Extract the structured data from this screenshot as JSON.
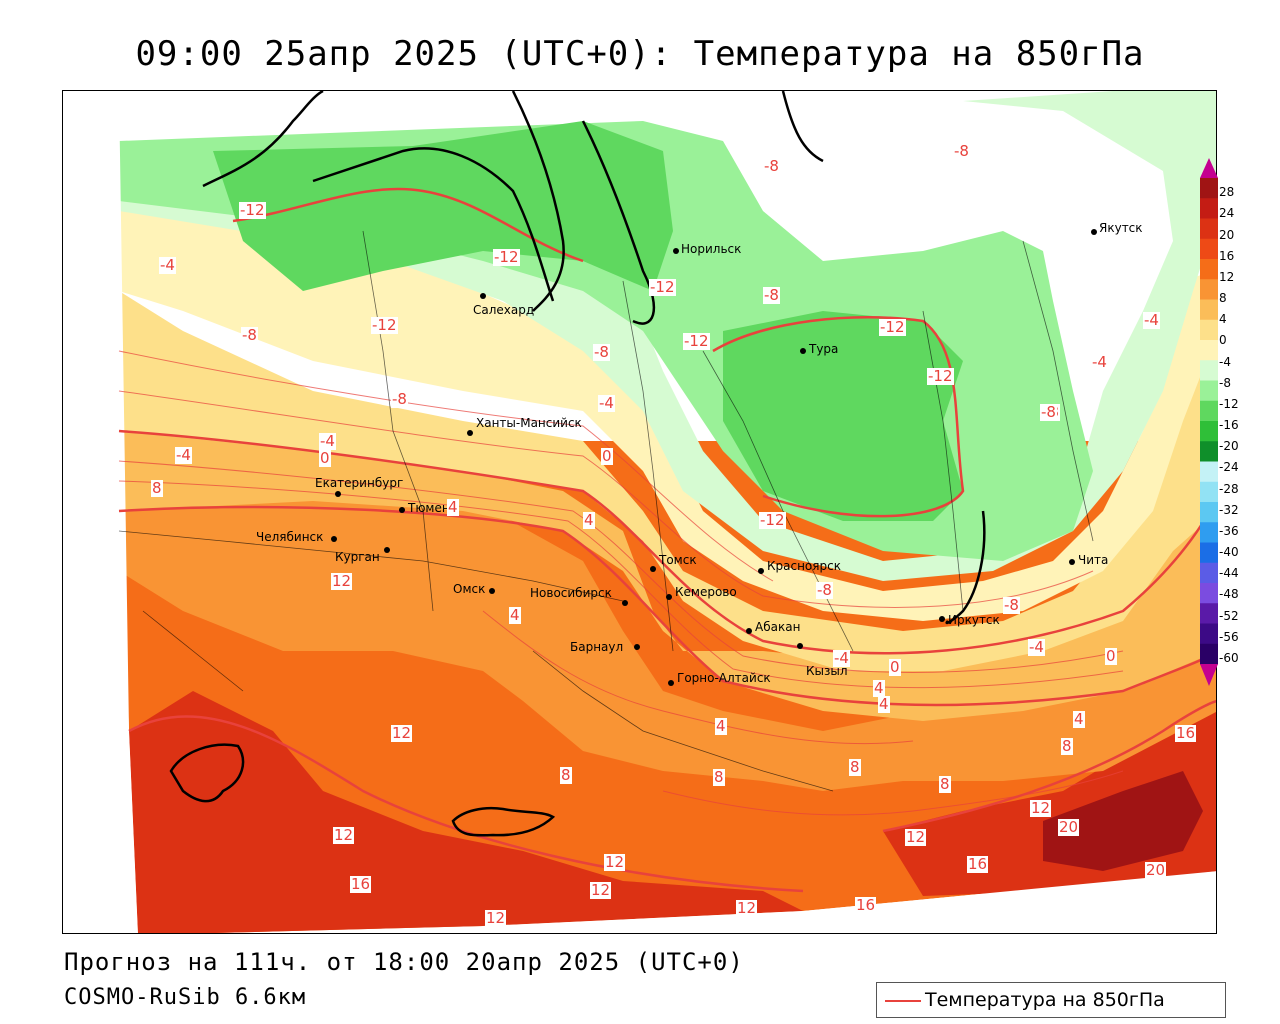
{
  "title": "09:00 25апр 2025 (UTC+0): Температура на 850гПа",
  "footer": {
    "forecast_line": "Прогноз на 111ч. от 18:00 20апр 2025 (UTC+0)",
    "model_line": "COSMO-RuSib 6.6км"
  },
  "legend": {
    "label": "Температура на 850гПа",
    "line_color": "#e8423c"
  },
  "colorbar": {
    "labels": [
      "28",
      "24",
      "20",
      "16",
      "12",
      "8",
      "4",
      "0",
      "-4",
      "-8",
      "-12",
      "-16",
      "-20",
      "-24",
      "-28",
      "-32",
      "-36",
      "-40",
      "-44",
      "-48",
      "-52",
      "-56",
      "-60"
    ],
    "colors": [
      "#a01414",
      "#c41c14",
      "#dc3214",
      "#ee4a16",
      "#f56d18",
      "#f99434",
      "#fbbd59",
      "#fde08a",
      "#fff3b8",
      "#d6fbd2",
      "#9af198",
      "#5fd85f",
      "#2fbf38",
      "#0f8f2a",
      "#c4f2f6",
      "#92e2f4",
      "#5cc8f2",
      "#2f9df0",
      "#1b6ee6",
      "#5b5ce6",
      "#7b4ce0",
      "#5a1aa8",
      "#3c0a86",
      "#2a0066",
      "#c40090"
    ]
  },
  "cities": [
    {
      "name": "Норильск"
    },
    {
      "name": "Якутск"
    },
    {
      "name": "Салехард"
    },
    {
      "name": "Тура"
    },
    {
      "name": "Ханты-Мансийск"
    },
    {
      "name": "Екатеринбург"
    },
    {
      "name": "Тюмень"
    },
    {
      "name": "Челябинск"
    },
    {
      "name": "Курган"
    },
    {
      "name": "Омск"
    },
    {
      "name": "Новосибирск"
    },
    {
      "name": "Томск"
    },
    {
      "name": "Красноярск"
    },
    {
      "name": "Кемерово"
    },
    {
      "name": "Абакан"
    },
    {
      "name": "Барнаул"
    },
    {
      "name": "Горно-Алтайск"
    },
    {
      "name": "Кызыл"
    },
    {
      "name": "Иркутск"
    },
    {
      "name": "Чита"
    }
  ],
  "contour_labels": [
    "-8",
    "-8",
    "-12",
    "-12",
    "-4",
    "-12",
    "-12",
    "-8",
    "-4",
    "-12",
    "-12",
    "-12",
    "-8",
    "-8",
    "-4",
    "-4",
    "-8",
    "-8",
    "-4",
    "-4",
    "-12",
    "-8",
    "-8",
    "4",
    "0",
    "4",
    "8",
    "0",
    "4",
    "-4",
    "0",
    "12",
    "4",
    "12",
    "8",
    "8",
    "8",
    "4",
    "4",
    "8",
    "16",
    "8",
    "12",
    "12",
    "20",
    "12",
    "16",
    "12",
    "16",
    "20",
    "12",
    "16",
    "12",
    "12",
    "4",
    "-4",
    "0",
    "-8"
  ]
}
